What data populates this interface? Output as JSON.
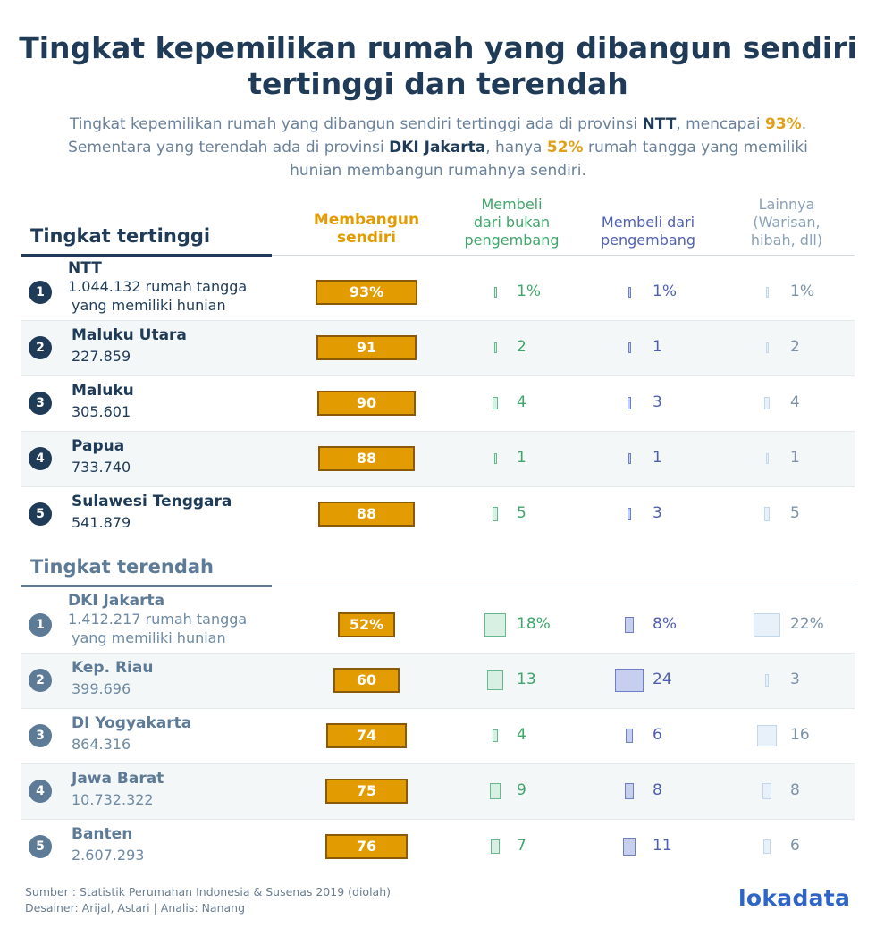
{
  "title_line1": "Tingkat kepemilikan rumah yang dibangun sendiri",
  "title_line2": "tertinggi dan terendah",
  "subtitle": {
    "l1_a": "Tingkat kepemilikan rumah yang dibangun sendiri tertinggi ada di provinsi ",
    "l1_b": "NTT",
    "l1_c": ", mencapai ",
    "l1_d": "93%",
    "l1_e": ".",
    "l2_a": "Sementara yang terendah ada di provinsi ",
    "l2_b": "DKI Jakarta",
    "l2_c": ", hanya ",
    "l2_d": "52%",
    "l2_e": " rumah tangga yang memiliki",
    "l3": "hunian membangun rumahnya sendiri."
  },
  "columns": {
    "built": [
      "Membangun",
      "sendiri"
    ],
    "non_dev": [
      "Membeli",
      "dari bukan",
      "pengembang"
    ],
    "dev": [
      "Membeli dari",
      "pengembang"
    ],
    "other": [
      "Lainnya",
      "(Warisan,",
      "hibah, dll)"
    ]
  },
  "colors": {
    "built": "#e29b00",
    "non_dev": "#66b88d",
    "dev": "#6f7fc7",
    "other": "#c2d7e9",
    "top_header": "#1f3b57",
    "bottom_header": "#5d7a96"
  },
  "footer": {
    "source": "Sumber : Statistik Perumahan Indonesia & Susenas 2019 (diolah)",
    "credits": "Desainer: Arijal, Astari | Analis: Nanang"
  },
  "logo": "lokadata",
  "chart_data": {
    "type": "table",
    "unit": "%",
    "columns": [
      "Membangun sendiri",
      "Membeli dari bukan pengembang",
      "Membeli dari pengembang",
      "Lainnya (Warisan, hibah, dll)"
    ],
    "sections": [
      {
        "label": "Tingkat tertinggi",
        "rows": [
          {
            "rank": "1",
            "province": "NTT",
            "households": "1.044.132",
            "households_note": [
              "rumah tangga",
              "yang memiliki hunian"
            ],
            "built": 93,
            "built_label": "93%",
            "non_dev": 1,
            "non_dev_label": "1%",
            "dev": 1,
            "dev_label": "1%",
            "other": 1,
            "other_label": "1%"
          },
          {
            "rank": "2",
            "province": "Maluku Utara",
            "households": "227.859",
            "built": 91,
            "built_label": "91",
            "non_dev": 2,
            "non_dev_label": "2",
            "dev": 1,
            "dev_label": "1",
            "other": 2,
            "other_label": "2"
          },
          {
            "rank": "3",
            "province": "Maluku",
            "households": "305.601",
            "built": 90,
            "built_label": "90",
            "non_dev": 4,
            "non_dev_label": "4",
            "dev": 3,
            "dev_label": "3",
            "other": 4,
            "other_label": "4"
          },
          {
            "rank": "4",
            "province": "Papua",
            "households": "733.740",
            "built": 88,
            "built_label": "88",
            "non_dev": 1,
            "non_dev_label": "1",
            "dev": 1,
            "dev_label": "1",
            "other": 1,
            "other_label": "1"
          },
          {
            "rank": "5",
            "province": "Sulawesi Tenggara",
            "households": "541.879",
            "built": 88,
            "built_label": "88",
            "non_dev": 5,
            "non_dev_label": "5",
            "dev": 3,
            "dev_label": "3",
            "other": 5,
            "other_label": "5"
          }
        ]
      },
      {
        "label": "Tingkat terendah",
        "rows": [
          {
            "rank": "1",
            "province": "DKI Jakarta",
            "households": "1.412.217",
            "households_note": [
              "rumah tangga",
              "yang memiliki hunian"
            ],
            "built": 52,
            "built_label": "52%",
            "non_dev": 18,
            "non_dev_label": "18%",
            "dev": 8,
            "dev_label": "8%",
            "other": 22,
            "other_label": "22%"
          },
          {
            "rank": "2",
            "province": "Kep. Riau",
            "households": "399.696",
            "built": 60,
            "built_label": "60",
            "non_dev": 13,
            "non_dev_label": "13",
            "dev": 24,
            "dev_label": "24",
            "other": 3,
            "other_label": "3"
          },
          {
            "rank": "3",
            "province": "DI Yogyakarta",
            "households": "864.316",
            "built": 74,
            "built_label": "74",
            "non_dev": 4,
            "non_dev_label": "4",
            "dev": 6,
            "dev_label": "6",
            "other": 16,
            "other_label": "16"
          },
          {
            "rank": "4",
            "province": "Jawa Barat",
            "households": "10.732.322",
            "built": 75,
            "built_label": "75",
            "non_dev": 9,
            "non_dev_label": "9",
            "dev": 8,
            "dev_label": "8",
            "other": 8,
            "other_label": "8"
          },
          {
            "rank": "5",
            "province": "Banten",
            "households": "2.607.293",
            "built": 76,
            "built_label": "76",
            "non_dev": 7,
            "non_dev_label": "7",
            "dev": 11,
            "dev_label": "11",
            "other": 6,
            "other_label": "6"
          }
        ]
      }
    ]
  }
}
